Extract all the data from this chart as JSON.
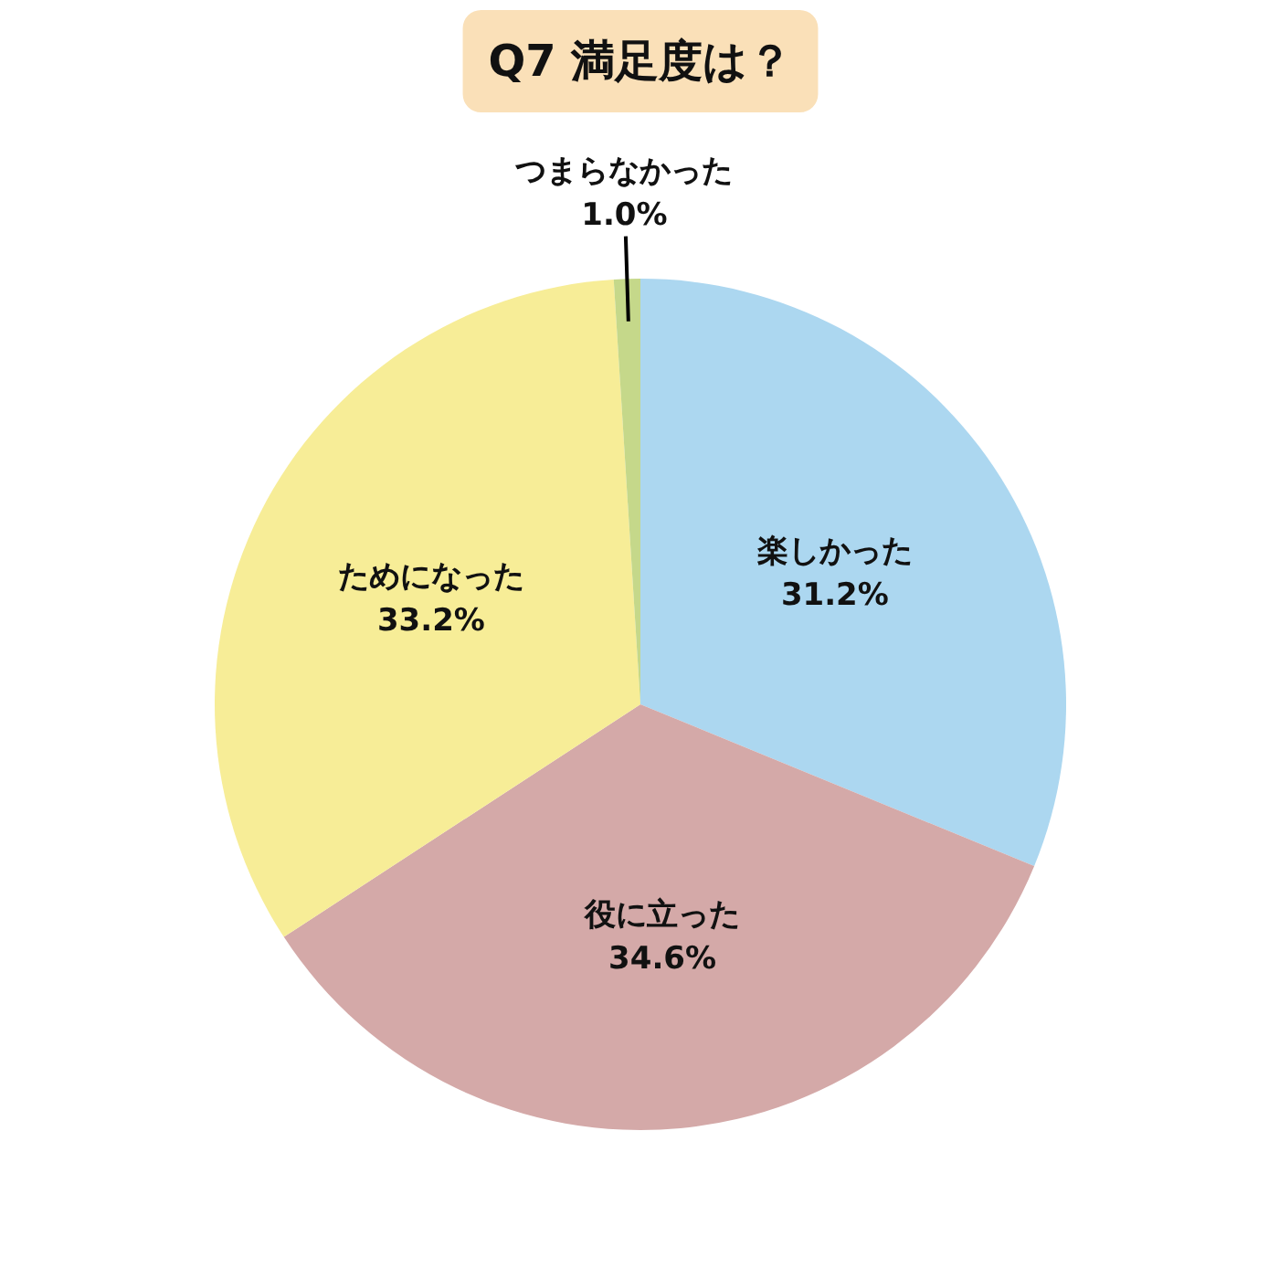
{
  "chart_data": {
    "type": "pie",
    "title": "Q7 満足度は？",
    "categories": [
      "楽しかった",
      "役に立った",
      "ためになった",
      "つまらなかった"
    ],
    "values": [
      31.2,
      34.6,
      33.2,
      1.0
    ],
    "value_labels": [
      "31.2%",
      "34.6%",
      "33.2%",
      "1.0%"
    ],
    "colors": [
      "#acd7f0",
      "#d4a9a8",
      "#f7ed97",
      "#c5d88a"
    ]
  }
}
